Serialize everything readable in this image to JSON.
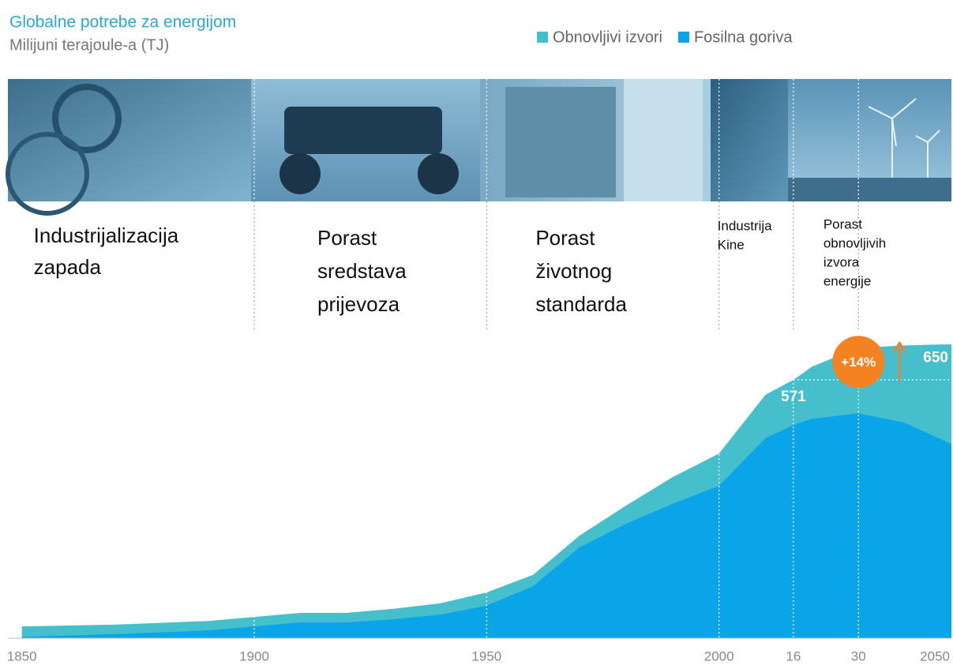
{
  "chart_data": {
    "type": "stacked_area",
    "title": "Globalne potrebe za energijom",
    "subtitle": "Milijuni terajoule-a (TJ)",
    "x": [
      1850,
      1870,
      1890,
      1900,
      1910,
      1920,
      1930,
      1940,
      1950,
      1960,
      1970,
      1980,
      1990,
      2000,
      2010,
      2016,
      2020,
      2030,
      2040,
      2050
    ],
    "series": [
      {
        "name": "Fosilna goriva",
        "color": "#0aa5e8",
        "values": [
          3,
          9,
          17,
          26,
          35,
          35,
          42,
          52,
          72,
          115,
          201,
          253,
          297,
          337,
          442,
          471,
          485,
          497,
          476,
          429
        ]
      },
      {
        "name": "Obnovljivi izvori",
        "color": "#45bfcb",
        "values": [
          23,
          21,
          21,
          21,
          21,
          21,
          23,
          25,
          29,
          25,
          26,
          40,
          59,
          71,
          96,
          100,
          115,
          145,
          171,
          221
        ]
      }
    ],
    "legend_order": [
      1,
      0
    ],
    "legend": "top-right",
    "xlim": [
      1847,
      2050
    ],
    "xticks": [
      1850,
      1900,
      1950,
      2000,
      {
        "value": 2016,
        "label": "16"
      },
      {
        "value": 2030,
        "label": "30"
      },
      2050
    ],
    "ylim": [
      0,
      700
    ],
    "dividers": [
      1900,
      1950,
      2000,
      2016,
      2030
    ],
    "eras": [
      {
        "start": 1850,
        "lines": [
          "Industrijalizacija",
          "zapada"
        ]
      },
      {
        "start": 1900,
        "lines": [
          "Porast",
          "sredstava",
          "prijevoza"
        ]
      },
      {
        "start": 1950,
        "lines": [
          "Porast",
          "životnog",
          "standarda"
        ]
      },
      {
        "start": 2000,
        "lines": [
          "Industrija",
          "Kine"
        ]
      },
      {
        "start": 2016,
        "lines": [
          "Porast",
          "obnovljivih",
          "izvora",
          "energije"
        ]
      }
    ],
    "callouts": [
      {
        "x": 2016,
        "value": 571,
        "label": "571"
      },
      {
        "x": 2050,
        "value": 650,
        "label": "650"
      }
    ],
    "growth": {
      "x": 2030,
      "value": 14,
      "label": "+14%"
    }
  }
}
